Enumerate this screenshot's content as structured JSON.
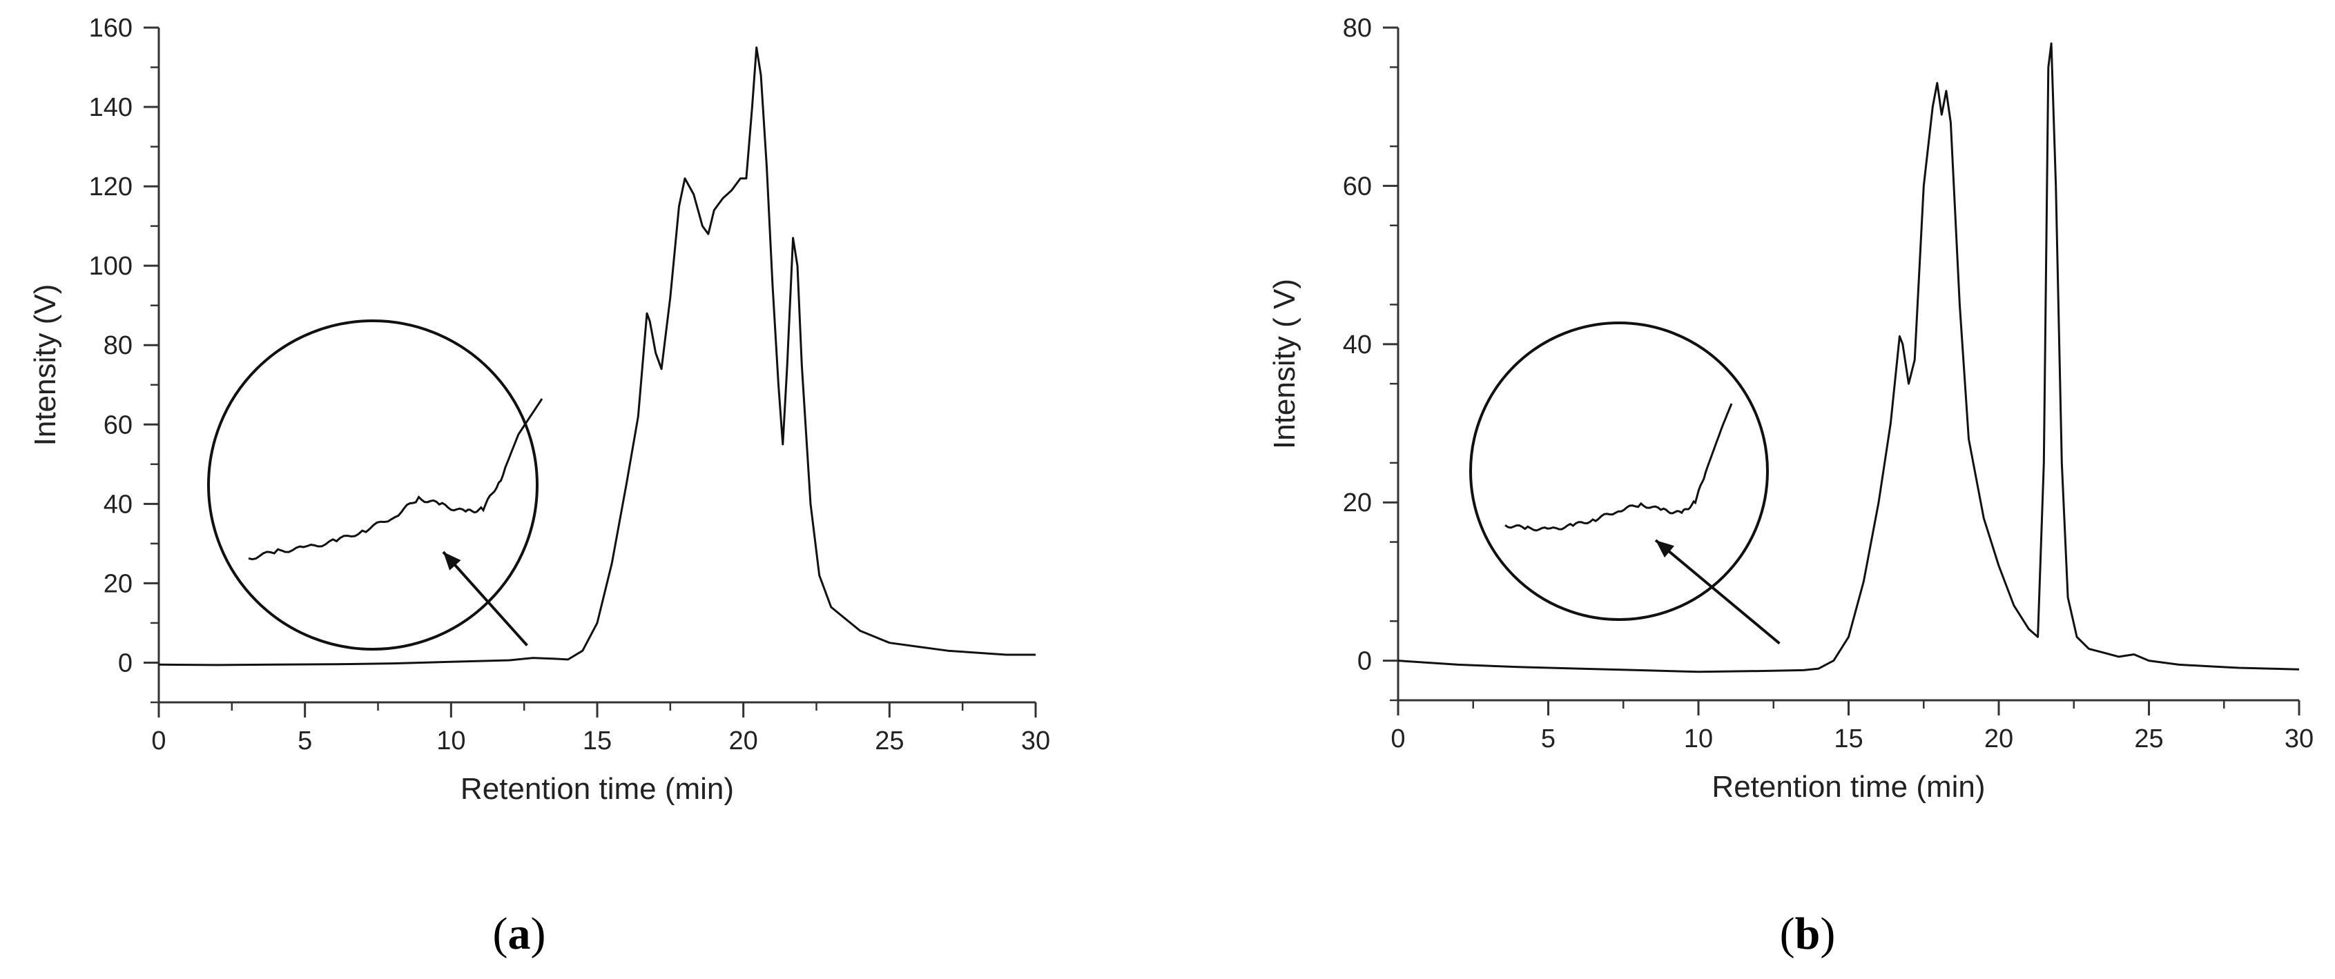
{
  "chart_data": [
    {
      "type": "line",
      "panel_label": "a",
      "xlabel": "Retention time (min)",
      "ylabel": "Intensity (V)",
      "xlim": [
        0,
        30
      ],
      "ylim": [
        -10,
        160
      ],
      "xticks": [
        0,
        5,
        10,
        15,
        20,
        25,
        30
      ],
      "yticks": [
        0,
        20,
        40,
        60,
        80,
        100,
        120,
        140,
        160
      ],
      "series": [
        {
          "name": "chromatogram",
          "points": [
            [
              0,
              -0.5
            ],
            [
              2,
              -0.6
            ],
            [
              4,
              -0.5
            ],
            [
              6,
              -0.4
            ],
            [
              8,
              -0.2
            ],
            [
              10,
              0.2
            ],
            [
              12,
              0.6
            ],
            [
              12.8,
              1.2
            ],
            [
              13.5,
              1.0
            ],
            [
              14.0,
              0.8
            ],
            [
              14.5,
              3
            ],
            [
              15.0,
              10
            ],
            [
              15.5,
              25
            ],
            [
              16.0,
              45
            ],
            [
              16.4,
              62
            ],
            [
              16.7,
              88
            ],
            [
              16.8,
              86
            ],
            [
              17.0,
              78
            ],
            [
              17.2,
              74
            ],
            [
              17.5,
              92
            ],
            [
              17.8,
              115
            ],
            [
              18.0,
              122
            ],
            [
              18.3,
              118
            ],
            [
              18.6,
              110
            ],
            [
              18.8,
              108
            ],
            [
              19.0,
              114
            ],
            [
              19.3,
              117
            ],
            [
              19.6,
              119
            ],
            [
              19.9,
              122
            ],
            [
              20.1,
              122
            ],
            [
              20.3,
              140
            ],
            [
              20.45,
              155
            ],
            [
              20.6,
              148
            ],
            [
              20.8,
              125
            ],
            [
              21.0,
              95
            ],
            [
              21.2,
              70
            ],
            [
              21.35,
              55
            ],
            [
              21.5,
              75
            ],
            [
              21.7,
              107
            ],
            [
              21.85,
              100
            ],
            [
              22.0,
              75
            ],
            [
              22.3,
              40
            ],
            [
              22.6,
              22
            ],
            [
              23.0,
              14
            ],
            [
              23.5,
              11
            ],
            [
              24,
              8
            ],
            [
              25,
              5
            ],
            [
              26,
              4
            ],
            [
              27,
              3
            ],
            [
              28,
              2.5
            ],
            [
              29,
              2
            ],
            [
              30,
              2
            ]
          ]
        }
      ],
      "inset": {
        "points": [
          [
            0.0,
            0.1
          ],
          [
            0.1,
            0.14
          ],
          [
            0.2,
            0.16
          ],
          [
            0.3,
            0.2
          ],
          [
            0.4,
            0.26
          ],
          [
            0.5,
            0.34
          ],
          [
            0.58,
            0.44
          ],
          [
            0.66,
            0.4
          ],
          [
            0.74,
            0.36
          ],
          [
            0.8,
            0.38
          ],
          [
            0.86,
            0.55
          ],
          [
            0.92,
            0.8
          ],
          [
            1.0,
            1.0
          ]
        ],
        "arrow_target_time": 12.6
      }
    },
    {
      "type": "line",
      "panel_label": "b",
      "xlabel": "Retention time (min)",
      "ylabel": "Intensity ( V)",
      "xlim": [
        0,
        30
      ],
      "ylim": [
        -5,
        80
      ],
      "xticks": [
        0,
        5,
        10,
        15,
        20,
        25,
        30
      ],
      "yticks": [
        0,
        20,
        40,
        60,
        80
      ],
      "series": [
        {
          "name": "chromatogram",
          "points": [
            [
              0,
              0
            ],
            [
              2,
              -0.5
            ],
            [
              4,
              -0.8
            ],
            [
              6,
              -1.0
            ],
            [
              8,
              -1.2
            ],
            [
              10,
              -1.4
            ],
            [
              12,
              -1.3
            ],
            [
              13.5,
              -1.2
            ],
            [
              14.0,
              -1.0
            ],
            [
              14.5,
              0
            ],
            [
              15.0,
              3
            ],
            [
              15.5,
              10
            ],
            [
              16.0,
              20
            ],
            [
              16.4,
              30
            ],
            [
              16.7,
              41
            ],
            [
              16.8,
              40
            ],
            [
              17.0,
              35
            ],
            [
              17.2,
              38
            ],
            [
              17.5,
              60
            ],
            [
              17.8,
              70
            ],
            [
              17.95,
              73
            ],
            [
              18.1,
              69
            ],
            [
              18.25,
              72
            ],
            [
              18.4,
              68
            ],
            [
              18.7,
              45
            ],
            [
              19.0,
              28
            ],
            [
              19.5,
              18
            ],
            [
              20.0,
              12
            ],
            [
              20.5,
              7
            ],
            [
              21.0,
              4
            ],
            [
              21.3,
              3
            ],
            [
              21.5,
              25
            ],
            [
              21.65,
              75
            ],
            [
              21.75,
              78
            ],
            [
              21.9,
              60
            ],
            [
              22.1,
              25
            ],
            [
              22.3,
              8
            ],
            [
              22.6,
              3
            ],
            [
              23,
              1.5
            ],
            [
              24,
              0.5
            ],
            [
              24.5,
              0.8
            ],
            [
              25,
              0
            ],
            [
              26,
              -0.5
            ],
            [
              27,
              -0.7
            ],
            [
              28,
              -0.9
            ],
            [
              29,
              -1.0
            ],
            [
              30,
              -1.1
            ]
          ]
        }
      ],
      "inset": {
        "points": [
          [
            0.0,
            0.18
          ],
          [
            0.1,
            0.16
          ],
          [
            0.2,
            0.15
          ],
          [
            0.3,
            0.18
          ],
          [
            0.4,
            0.22
          ],
          [
            0.5,
            0.28
          ],
          [
            0.6,
            0.32
          ],
          [
            0.7,
            0.28
          ],
          [
            0.78,
            0.26
          ],
          [
            0.84,
            0.34
          ],
          [
            0.9,
            0.6
          ],
          [
            0.96,
            0.85
          ],
          [
            1.0,
            1.0
          ]
        ],
        "arrow_target_time": 12.7
      }
    }
  ]
}
